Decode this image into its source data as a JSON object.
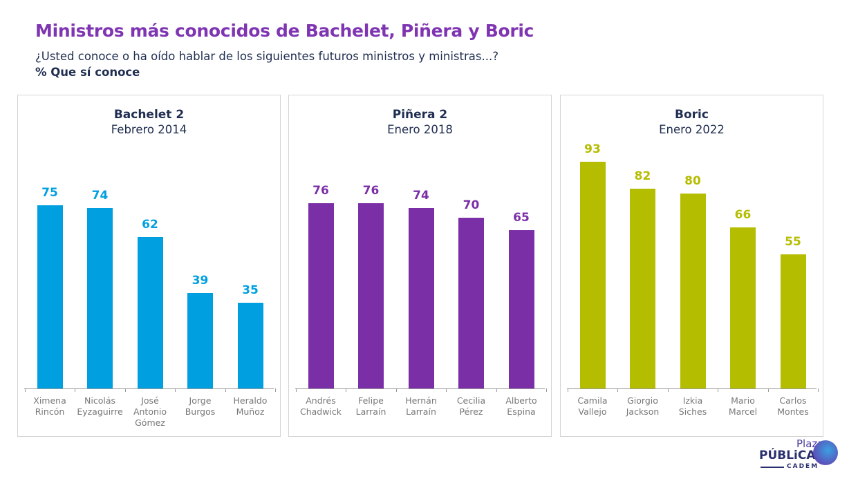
{
  "header": {
    "title": "Ministros más conocidos de Bachelet, Piñera y Boric",
    "subtitle": "¿Usted conoce o ha oído hablar de los siguientes futuros ministros y ministras...?",
    "measure": "% Que sí conoce"
  },
  "logo": {
    "text": "Plaza PÚBLiCA CADEM",
    "plaza": "Plaza",
    "publica": "PÚBLiCA",
    "cadem": "CADEM"
  },
  "chart_data": [
    {
      "type": "bar",
      "title": "Bachelet 2",
      "subtitle": "Febrero 2014",
      "color": "#00a0e0",
      "ylim": [
        0,
        100
      ],
      "categories": [
        "Ximena\nRincón",
        "Nicolás\nEyzaguirre",
        "José\nAntonio\nGómez",
        "Jorge\nBurgos",
        "Heraldo\nMuñoz"
      ],
      "values": [
        75,
        74,
        62,
        39,
        35
      ]
    },
    {
      "type": "bar",
      "title": "Piñera 2",
      "subtitle": "Enero 2018",
      "color": "#7b2fa6",
      "ylim": [
        0,
        100
      ],
      "categories": [
        "Andrés\nChadwick",
        "Felipe\nLarraín",
        "Hernán\nLarraín",
        "Cecilia\nPérez",
        "Alberto\nEspina"
      ],
      "values": [
        76,
        76,
        74,
        70,
        65
      ]
    },
    {
      "type": "bar",
      "title": "Boric",
      "subtitle": "Enero 2022",
      "color": "#b5bd00",
      "ylim": [
        0,
        100
      ],
      "categories": [
        "Camila\nVallejo",
        "Giorgio\nJackson",
        "Izkia\nSiches",
        "Mario\nMarcel",
        "Carlos\nMontes"
      ],
      "values": [
        93,
        82,
        80,
        66,
        55
      ]
    }
  ]
}
